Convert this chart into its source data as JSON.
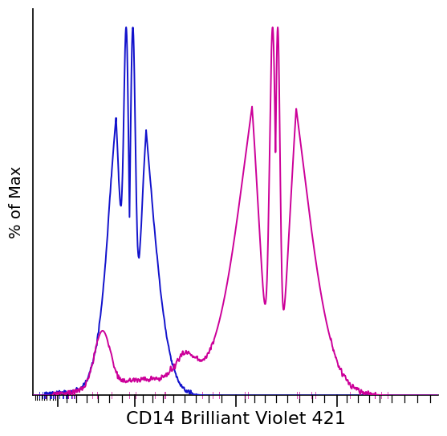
{
  "title": "",
  "xlabel": "CD14 Brilliant Violet 421",
  "ylabel": "% of Max",
  "xlabel_fontsize": 16,
  "ylabel_fontsize": 14,
  "blue_color": "#1212cc",
  "magenta_color": "#cc0099",
  "background_color": "#ffffff",
  "xlim": [
    0,
    1023
  ],
  "ylim": [
    0,
    1.05
  ],
  "figwidth": 5.57,
  "figheight": 5.43,
  "dpi": 100
}
